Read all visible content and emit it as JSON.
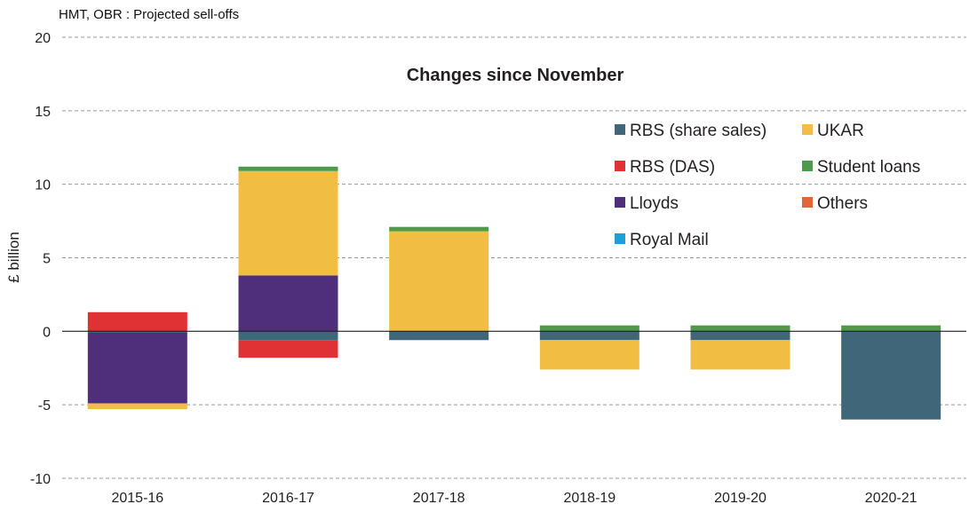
{
  "source_label": "HMT, OBR : Projected sell-offs",
  "chart_data": {
    "type": "bar",
    "stacked": true,
    "title": "Changes since November",
    "ylabel": "£ billion",
    "xlabel": "",
    "ylim": [
      -10,
      20
    ],
    "yticks": [
      20,
      15,
      10,
      5,
      0,
      -5,
      -10
    ],
    "grid": "dashed horizontal",
    "legend_position": "top-right",
    "categories": [
      "2015-16",
      "2016-17",
      "2017-18",
      "2018-19",
      "2019-20",
      "2020-21"
    ],
    "series": [
      {
        "name": "RBS (share sales)",
        "color": "#3f6679",
        "values": [
          -0.1,
          -0.6,
          -0.6,
          -0.6,
          -0.6,
          -6.0
        ]
      },
      {
        "name": "RBS (DAS)",
        "color": "#e03234",
        "values": [
          1.3,
          -1.2,
          0,
          0,
          0,
          0
        ]
      },
      {
        "name": "Lloyds",
        "color": "#4f2e7c",
        "values": [
          -4.8,
          3.8,
          0,
          0,
          0,
          0
        ]
      },
      {
        "name": "Royal Mail",
        "color": "#1aa1d6",
        "values": [
          0,
          0,
          0,
          0,
          0,
          0
        ]
      },
      {
        "name": "UKAR",
        "color": "#f2bd43",
        "values": [
          -0.4,
          7.1,
          6.8,
          -2.0,
          -2.0,
          0
        ]
      },
      {
        "name": "Student loans",
        "color": "#4d9a4a",
        "values": [
          0,
          0.3,
          0.3,
          0.4,
          0.4,
          0.4
        ]
      },
      {
        "name": "Others",
        "color": "#e3663a",
        "values": [
          0,
          0,
          0,
          0,
          0,
          0
        ]
      }
    ],
    "legend_order": [
      "RBS (share sales)",
      "UKAR",
      "RBS (DAS)",
      "Student loans",
      "Lloyds",
      "Others",
      "Royal Mail"
    ]
  }
}
